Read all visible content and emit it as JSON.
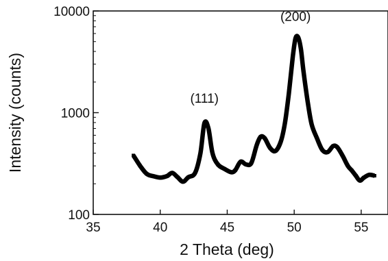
{
  "chart_data": {
    "type": "line",
    "xlabel": "2 Theta (deg)",
    "ylabel": "Intensity (counts)",
    "xlim": [
      35,
      57
    ],
    "ylim": [
      100,
      10000
    ],
    "y_scale": "log",
    "grid": false,
    "x_ticks": [
      35,
      40,
      45,
      50,
      55
    ],
    "x_tick_labels": [
      "35",
      "40",
      "45",
      "50",
      "55"
    ],
    "y_ticks": [
      100,
      1000,
      10000
    ],
    "y_tick_labels": [
      "100",
      "1000",
      "10000"
    ],
    "series": [
      {
        "color": "#000000",
        "x": [
          38.0,
          38.5,
          39.0,
          39.5,
          40.0,
          40.5,
          40.9,
          41.3,
          41.7,
          42.1,
          42.6,
          43.0,
          43.3,
          43.6,
          43.9,
          44.3,
          44.8,
          45.3,
          45.6,
          46.0,
          46.4,
          46.8,
          47.2,
          47.5,
          47.8,
          48.2,
          48.6,
          49.0,
          49.3,
          49.6,
          49.9,
          50.1,
          50.3,
          50.5,
          50.7,
          51.0,
          51.3,
          51.7,
          52.1,
          52.5,
          52.9,
          53.2,
          53.6,
          54.0,
          54.3,
          54.6,
          54.9,
          55.2,
          55.6,
          56.0
        ],
        "y": [
          380,
          300,
          250,
          237,
          230,
          238,
          256,
          232,
          210,
          232,
          255,
          400,
          790,
          700,
          400,
          310,
          280,
          260,
          272,
          330,
          310,
          320,
          480,
          580,
          560,
          450,
          420,
          520,
          780,
          1550,
          3600,
          5400,
          5500,
          4200,
          2500,
          1300,
          770,
          560,
          430,
          410,
          470,
          460,
          380,
          300,
          270,
          240,
          215,
          230,
          245,
          240
        ]
      }
    ],
    "annotations": [
      {
        "text": "(111)",
        "x": 43.3,
        "y": 1250
      },
      {
        "text": "(200)",
        "x": 50.1,
        "y": 8000
      }
    ]
  }
}
